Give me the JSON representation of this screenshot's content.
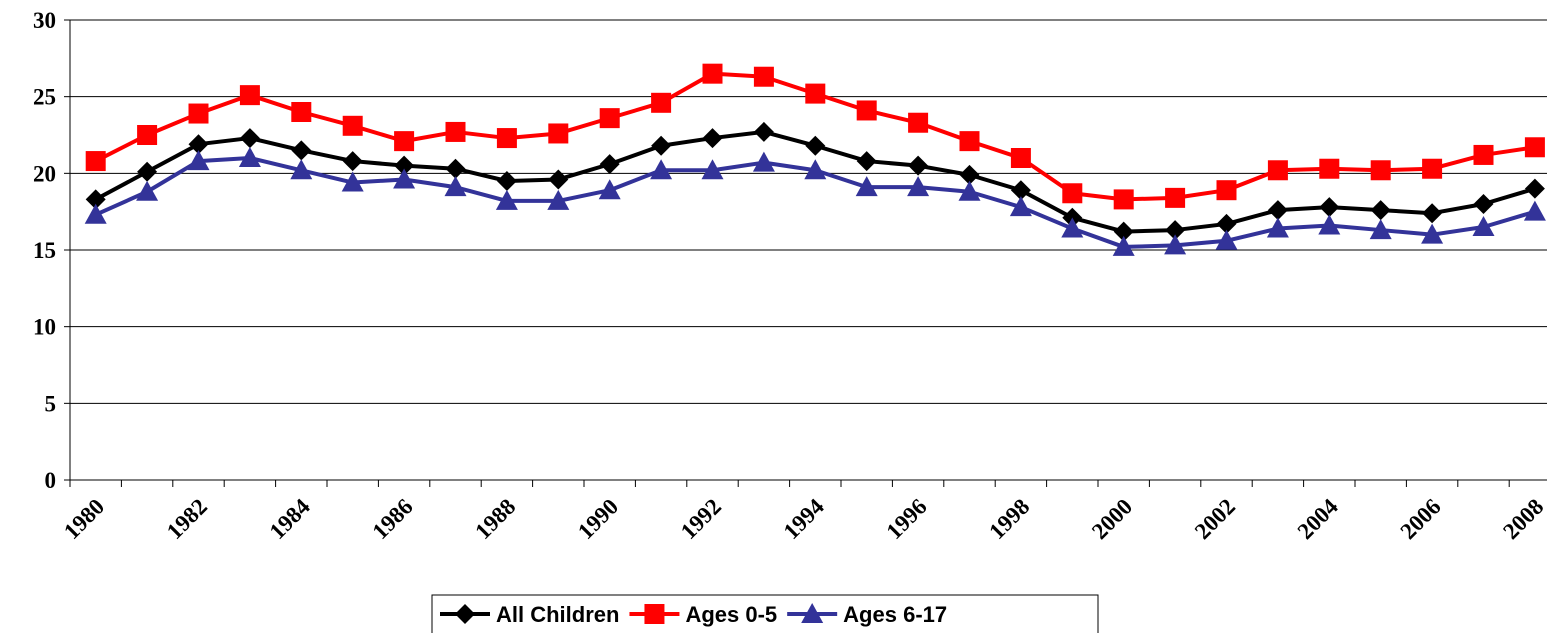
{
  "chart_data": {
    "type": "line",
    "categories": [
      "1980",
      null,
      "1982",
      null,
      "1984",
      null,
      "1986",
      null,
      "1988",
      null,
      "1990",
      null,
      "1992",
      null,
      "1994",
      null,
      "1996",
      null,
      "1998",
      null,
      "2000",
      null,
      "2002",
      null,
      "2004",
      null,
      "2006",
      null,
      "2008"
    ],
    "series": [
      {
        "name": "All Children",
        "color": "#000000",
        "marker": "diamond",
        "values": [
          18.3,
          20.1,
          21.9,
          22.3,
          21.5,
          20.8,
          20.5,
          20.3,
          19.5,
          19.6,
          20.6,
          21.8,
          22.3,
          22.7,
          21.8,
          20.8,
          20.5,
          19.9,
          18.9,
          17.1,
          16.2,
          16.3,
          16.7,
          17.6,
          17.8,
          17.6,
          17.4,
          18.0,
          19.0
        ]
      },
      {
        "name": "Ages 0-5",
        "color": "#ff0000",
        "marker": "square",
        "values": [
          20.8,
          22.5,
          23.9,
          25.1,
          24.0,
          23.1,
          22.1,
          22.7,
          22.3,
          22.6,
          23.6,
          24.6,
          26.5,
          26.3,
          25.2,
          24.1,
          23.3,
          22.1,
          21.0,
          18.7,
          18.3,
          18.4,
          18.9,
          20.2,
          20.3,
          20.2,
          20.3,
          21.2,
          21.7
        ]
      },
      {
        "name": "Ages 6-17",
        "color": "#333399",
        "marker": "triangle",
        "values": [
          17.3,
          18.8,
          20.8,
          21.0,
          20.2,
          19.4,
          19.6,
          19.1,
          18.2,
          18.2,
          18.9,
          20.2,
          20.2,
          20.7,
          20.2,
          19.1,
          19.1,
          18.8,
          17.8,
          16.4,
          15.2,
          15.3,
          15.6,
          16.4,
          16.6,
          16.3,
          16.0,
          16.5,
          17.5
        ]
      }
    ],
    "ylim": [
      0,
      30
    ],
    "yticks": [
      0,
      5,
      10,
      15,
      20,
      25,
      30
    ],
    "grid": true,
    "legend": "bottom"
  }
}
